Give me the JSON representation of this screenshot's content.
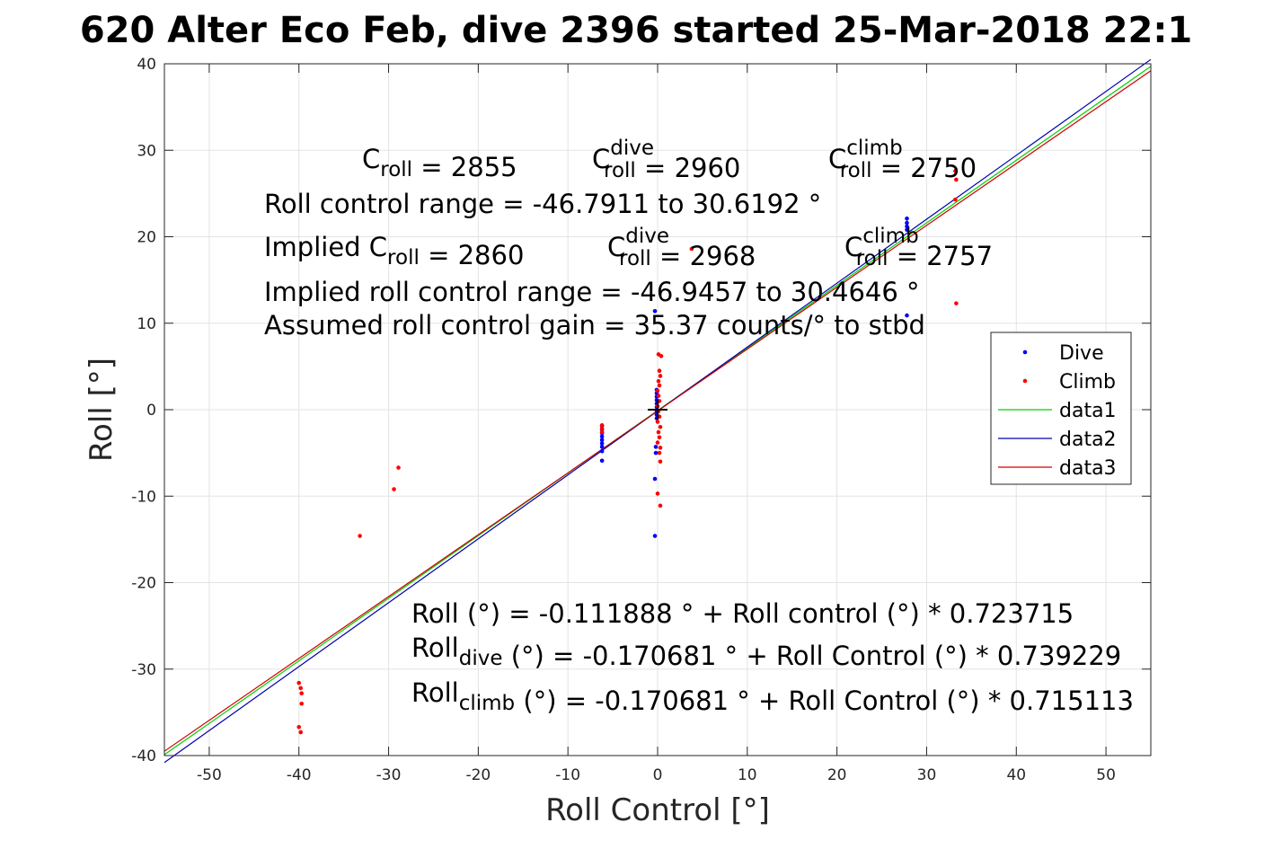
{
  "chart_data": {
    "type": "scatter",
    "title": "620 Alter Eco Feb, dive 2396 started 25-Mar-2018 22:1",
    "xlabel": "Roll Control [°]",
    "ylabel": "Roll [°]",
    "xlim": [
      -55,
      55
    ],
    "ylim": [
      -40,
      40
    ],
    "xticks": [
      -50,
      -40,
      -30,
      -20,
      -10,
      0,
      10,
      20,
      30,
      40,
      50
    ],
    "yticks": [
      -40,
      -30,
      -20,
      -10,
      0,
      10,
      20,
      30,
      40
    ],
    "xtick_labels": [
      "-50",
      "-40",
      "-30",
      "-20",
      "-10",
      "0",
      "10",
      "20",
      "30",
      "40",
      "50"
    ],
    "ytick_labels": [
      "-40",
      "-30",
      "-20",
      "-10",
      "0",
      "10",
      "20",
      "30",
      "40"
    ],
    "grid": true,
    "legend_position": "right",
    "series": [
      {
        "name": "Dive",
        "kind": "points",
        "color": "#0000ff",
        "points": [
          [
            -6.2,
            -1.9
          ],
          [
            -6.2,
            -2.3
          ],
          [
            -6.2,
            -2.7
          ],
          [
            -6.2,
            -3.1
          ],
          [
            -6.2,
            -3.5
          ],
          [
            -6.2,
            -3.9
          ],
          [
            -6.2,
            -4.3
          ],
          [
            -6.2,
            -4.8
          ],
          [
            -6.2,
            -5.9
          ],
          [
            -0.3,
            11.4
          ],
          [
            -0.1,
            2.3
          ],
          [
            -0.1,
            1.9
          ],
          [
            -0.1,
            1.5
          ],
          [
            -0.1,
            1.1
          ],
          [
            -0.1,
            0.7
          ],
          [
            -0.1,
            0.3
          ],
          [
            -0.1,
            -0.2
          ],
          [
            -0.1,
            -0.6
          ],
          [
            -0.1,
            -1.0
          ],
          [
            -0.2,
            -4.3
          ],
          [
            -0.2,
            -5.0
          ],
          [
            -0.3,
            -8.0
          ],
          [
            -0.3,
            -14.6
          ],
          [
            27.8,
            22.1
          ],
          [
            27.8,
            21.6
          ],
          [
            27.8,
            21.2
          ],
          [
            27.8,
            20.8
          ],
          [
            27.8,
            10.9
          ]
        ]
      },
      {
        "name": "Climb",
        "kind": "points",
        "color": "#ff0000",
        "points": [
          [
            -40.0,
            -31.6
          ],
          [
            -39.8,
            -32.2
          ],
          [
            -39.7,
            -32.8
          ],
          [
            -39.7,
            -34.0
          ],
          [
            -40.0,
            -36.7
          ],
          [
            -39.8,
            -37.3
          ],
          [
            -33.2,
            -14.6
          ],
          [
            -29.4,
            -9.2
          ],
          [
            -28.9,
            -6.7
          ],
          [
            -6.2,
            -1.8
          ],
          [
            -6.2,
            -2.2
          ],
          [
            -6.2,
            -2.6
          ],
          [
            0.1,
            6.4
          ],
          [
            0.4,
            6.2
          ],
          [
            0.2,
            4.5
          ],
          [
            0.3,
            3.9
          ],
          [
            0.1,
            3.3
          ],
          [
            0.2,
            2.8
          ],
          [
            0.0,
            2.2
          ],
          [
            0.1,
            1.6
          ],
          [
            0.2,
            1.0
          ],
          [
            0.0,
            0.4
          ],
          [
            0.1,
            -0.2
          ],
          [
            0.2,
            -0.8
          ],
          [
            0.0,
            -1.4
          ],
          [
            0.3,
            -2.0
          ],
          [
            0.1,
            -2.6
          ],
          [
            0.2,
            -3.2
          ],
          [
            0.0,
            -3.8
          ],
          [
            0.3,
            -4.4
          ],
          [
            0.2,
            -5.0
          ],
          [
            0.3,
            -6.0
          ],
          [
            0.0,
            -9.7
          ],
          [
            0.3,
            -11.1
          ],
          [
            3.8,
            18.6
          ],
          [
            33.2,
            27.6
          ],
          [
            33.3,
            26.6
          ],
          [
            33.2,
            24.3
          ],
          [
            33.3,
            12.3
          ]
        ]
      },
      {
        "name": "data1",
        "kind": "line",
        "color": "#00d000",
        "points": [
          [
            -55,
            -39.9
          ],
          [
            55,
            39.7
          ]
        ]
      },
      {
        "name": "data2",
        "kind": "line",
        "color": "#0000b0",
        "points": [
          [
            -55,
            -40.8
          ],
          [
            55,
            40.5
          ]
        ]
      },
      {
        "name": "data3",
        "kind": "line",
        "color": "#d00000",
        "points": [
          [
            -55,
            -39.5
          ],
          [
            55,
            39.2
          ]
        ]
      }
    ],
    "origin_marker": "+",
    "annotations": [
      {
        "parts": [
          [
            "n",
            "C"
          ],
          [
            "sub",
            "roll"
          ],
          [
            "n",
            " = 2855"
          ]
        ]
      },
      {
        "parts": [
          [
            "n",
            "C"
          ],
          [
            "supsub",
            "dive",
            "roll"
          ],
          [
            "n",
            " = 2960"
          ]
        ]
      },
      {
        "parts": [
          [
            "n",
            "C"
          ],
          [
            "supsub",
            "climb",
            "roll"
          ],
          [
            "n",
            " = 2750"
          ]
        ]
      },
      {
        "parts": [
          [
            "n",
            "Roll control range = -46.7911 to 30.6192 °"
          ]
        ]
      },
      {
        "parts": [
          [
            "n",
            "Implied C"
          ],
          [
            "sub",
            "roll"
          ],
          [
            "n",
            " = 2860"
          ]
        ]
      },
      {
        "parts": [
          [
            "n",
            "C"
          ],
          [
            "supsub",
            "dive",
            "roll"
          ],
          [
            "n",
            " = 2968"
          ]
        ]
      },
      {
        "parts": [
          [
            "n",
            "C"
          ],
          [
            "supsub",
            "climb",
            "roll"
          ],
          [
            "n",
            " = 2757"
          ]
        ]
      },
      {
        "parts": [
          [
            "n",
            "Implied roll control range = -46.9457 to 30.4646 °"
          ]
        ]
      },
      {
        "parts": [
          [
            "n",
            "Assumed roll control gain = 35.37 counts/° to stbd"
          ]
        ]
      },
      {
        "parts": [
          [
            "n",
            "Roll (°) = -0.111888 ° + Roll control (°) * 0.723715"
          ]
        ]
      },
      {
        "parts": [
          [
            "n",
            "Roll"
          ],
          [
            "sub",
            "dive"
          ],
          [
            "n",
            " (°) = -0.170681 ° + Roll Control (°) * 0.739229"
          ]
        ]
      },
      {
        "parts": [
          [
            "n",
            "Roll"
          ],
          [
            "sub",
            "climb"
          ],
          [
            "n",
            " (°) = -0.170681 ° + Roll Control (°) * 0.715113"
          ]
        ]
      }
    ]
  }
}
